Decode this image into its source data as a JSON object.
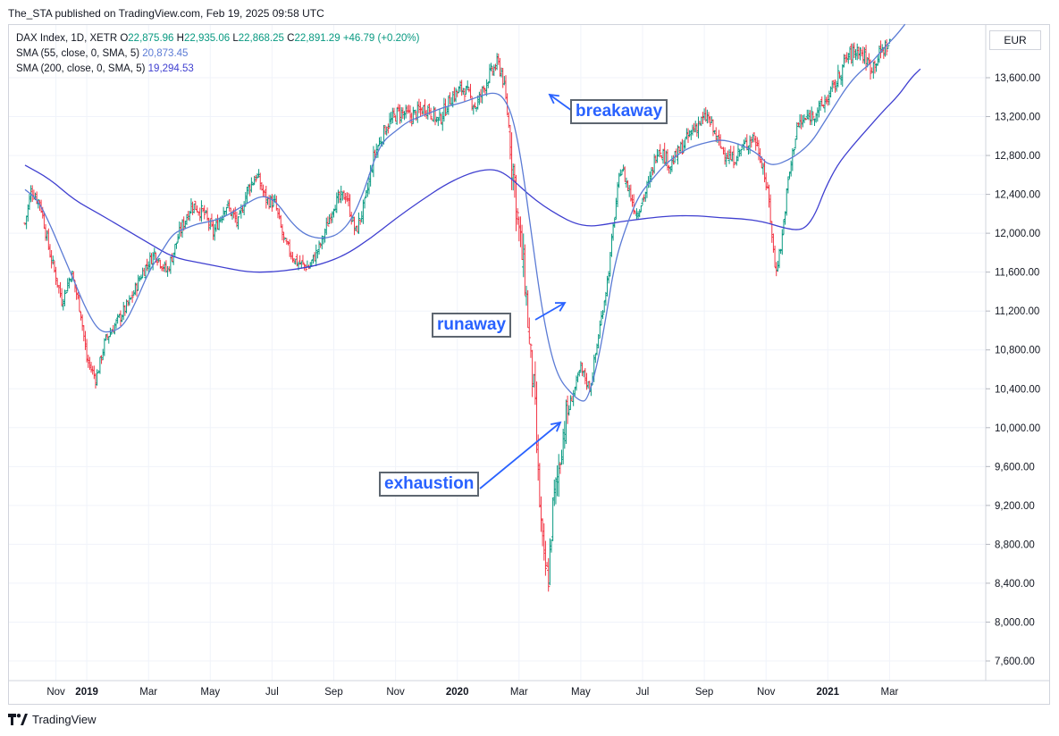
{
  "header": {
    "publisher": "The_STA published on TradingView.com, Feb 19, 2025 09:58 UTC"
  },
  "legend": {
    "symbol": "DAX Index, 1D, XETR",
    "ohlc": [
      {
        "k": "O",
        "v": "22,875.96"
      },
      {
        "k": "H",
        "v": "22,935.06"
      },
      {
        "k": "L",
        "v": "22,868.25"
      },
      {
        "k": "C",
        "v": "22,891.29"
      }
    ],
    "change": "+46.79 (+0.20%)",
    "sma55_label": "SMA (55, close, 0, SMA, 5)",
    "sma55_value": "20,873.45",
    "sma200_label": "SMA (200, close, 0, SMA, 5)",
    "sma200_value": "19,294.53"
  },
  "currency": "EUR",
  "footer": {
    "brand": "TradingView"
  },
  "colors": {
    "up": "#089981",
    "down": "#f23645",
    "sma55": "#5b7bd5",
    "sma200": "#3f3fd0",
    "annotation": "#2962ff",
    "grid": "#f0f3fa"
  },
  "annotations": [
    {
      "id": "breakaway",
      "label": "breakaway"
    },
    {
      "id": "runaway",
      "label": "runaway"
    },
    {
      "id": "exhaustion",
      "label": "exhaustion"
    }
  ],
  "chart_data": {
    "type": "ohlc",
    "x_unit": "months since Oct 2018",
    "y_ticks": [
      7600,
      8000,
      8400,
      8800,
      9200,
      9600,
      10000,
      10400,
      10800,
      11200,
      11600,
      12000,
      12400,
      12800,
      13200,
      13600
    ],
    "y_tick_labels": [
      "7,600.00",
      "8,000.00",
      "8,400.00",
      "8,800.00",
      "9,200.00",
      "9,600.00",
      "10,000.00",
      "10,400.00",
      "10,800.00",
      "11,200.00",
      "11,600.00",
      "12,000.00",
      "12,400.00",
      "12,800.00",
      "13,200.00",
      "13,600.00"
    ],
    "ylim": [
      7300,
      14150
    ],
    "x_ticks": [
      {
        "label": "Nov",
        "month": 1,
        "bold": false
      },
      {
        "label": "2019",
        "month": 2,
        "bold": true
      },
      {
        "label": "Mar",
        "month": 4,
        "bold": false
      },
      {
        "label": "May",
        "month": 6,
        "bold": false
      },
      {
        "label": "Jul",
        "month": 8,
        "bold": false
      },
      {
        "label": "Sep",
        "month": 10,
        "bold": false
      },
      {
        "label": "Nov",
        "month": 12,
        "bold": false
      },
      {
        "label": "2020",
        "month": 14,
        "bold": true
      },
      {
        "label": "Mar",
        "month": 16,
        "bold": false
      },
      {
        "label": "May",
        "month": 18,
        "bold": false
      },
      {
        "label": "Jul",
        "month": 20,
        "bold": false
      },
      {
        "label": "Sep",
        "month": 22,
        "bold": false
      },
      {
        "label": "Nov",
        "month": 24,
        "bold": false
      },
      {
        "label": "2021",
        "month": 26,
        "bold": true
      },
      {
        "label": "Mar",
        "month": 28,
        "bold": false
      }
    ],
    "close_path": [
      [
        0.0,
        12100
      ],
      [
        0.2,
        12450
      ],
      [
        0.5,
        12300
      ],
      [
        0.8,
        11800
      ],
      [
        1.2,
        11300
      ],
      [
        1.5,
        11600
      ],
      [
        1.8,
        11200
      ],
      [
        2.0,
        10700
      ],
      [
        2.3,
        10500
      ],
      [
        2.6,
        10900
      ],
      [
        3.0,
        11100
      ],
      [
        3.4,
        11300
      ],
      [
        3.8,
        11600
      ],
      [
        4.2,
        11800
      ],
      [
        4.6,
        11600
      ],
      [
        5.0,
        12000
      ],
      [
        5.4,
        12300
      ],
      [
        5.8,
        12200
      ],
      [
        6.1,
        12000
      ],
      [
        6.5,
        12300
      ],
      [
        6.9,
        12100
      ],
      [
        7.2,
        12450
      ],
      [
        7.5,
        12600
      ],
      [
        7.8,
        12350
      ],
      [
        8.1,
        12300
      ],
      [
        8.4,
        11900
      ],
      [
        8.8,
        11700
      ],
      [
        9.2,
        11650
      ],
      [
        9.6,
        11900
      ],
      [
        10.0,
        12300
      ],
      [
        10.4,
        12400
      ],
      [
        10.7,
        12000
      ],
      [
        11.0,
        12300
      ],
      [
        11.3,
        12800
      ],
      [
        11.7,
        13100
      ],
      [
        12.1,
        13250
      ],
      [
        12.5,
        13200
      ],
      [
        13.0,
        13300
      ],
      [
        13.4,
        13150
      ],
      [
        13.8,
        13400
      ],
      [
        14.2,
        13500
      ],
      [
        14.6,
        13300
      ],
      [
        15.0,
        13600
      ],
      [
        15.3,
        13750
      ],
      [
        15.45,
        13650
      ],
      [
        15.6,
        13300
      ],
      [
        15.8,
        12700
      ],
      [
        16.0,
        12000
      ],
      [
        16.2,
        11500
      ],
      [
        16.35,
        10800
      ],
      [
        16.5,
        10300
      ],
      [
        16.65,
        9300
      ],
      [
        16.8,
        8600
      ],
      [
        16.95,
        8450
      ],
      [
        17.1,
        9200
      ],
      [
        17.25,
        9500
      ],
      [
        17.45,
        10000
      ],
      [
        17.7,
        10300
      ],
      [
        18.0,
        10600
      ],
      [
        18.3,
        10400
      ],
      [
        18.6,
        11000
      ],
      [
        18.9,
        11600
      ],
      [
        19.1,
        12200
      ],
      [
        19.3,
        12700
      ],
      [
        19.5,
        12500
      ],
      [
        19.8,
        12200
      ],
      [
        20.2,
        12500
      ],
      [
        20.5,
        12900
      ],
      [
        20.9,
        12700
      ],
      [
        21.3,
        12900
      ],
      [
        21.7,
        13100
      ],
      [
        22.1,
        13200
      ],
      [
        22.5,
        12900
      ],
      [
        22.9,
        12750
      ],
      [
        23.3,
        12900
      ],
      [
        23.6,
        13000
      ],
      [
        23.9,
        12700
      ],
      [
        24.1,
        12300
      ],
      [
        24.3,
        11600
      ],
      [
        24.5,
        11900
      ],
      [
        24.7,
        12500
      ],
      [
        25.0,
        13100
      ],
      [
        25.4,
        13200
      ],
      [
        25.8,
        13300
      ],
      [
        26.2,
        13500
      ],
      [
        26.6,
        13800
      ],
      [
        27.0,
        13900
      ],
      [
        27.4,
        13700
      ],
      [
        27.8,
        13900
      ],
      [
        28.0,
        13950
      ]
    ],
    "sma55": [
      [
        0.0,
        12450
      ],
      [
        0.4,
        12350
      ],
      [
        0.8,
        12100
      ],
      [
        1.2,
        11800
      ],
      [
        1.6,
        11500
      ],
      [
        2.0,
        11200
      ],
      [
        2.4,
        10990
      ],
      [
        2.8,
        10980
      ],
      [
        3.2,
        11050
      ],
      [
        3.6,
        11300
      ],
      [
        4.0,
        11600
      ],
      [
        4.4,
        11800
      ],
      [
        4.8,
        12000
      ],
      [
        5.2,
        12050
      ],
      [
        5.6,
        12100
      ],
      [
        6.0,
        12120
      ],
      [
        6.4,
        12160
      ],
      [
        6.8,
        12230
      ],
      [
        7.2,
        12310
      ],
      [
        7.6,
        12380
      ],
      [
        7.9,
        12370
      ],
      [
        8.2,
        12300
      ],
      [
        8.6,
        12120
      ],
      [
        9.0,
        12000
      ],
      [
        9.4,
        11950
      ],
      [
        9.8,
        11950
      ],
      [
        10.2,
        12000
      ],
      [
        10.6,
        12150
      ],
      [
        11.0,
        12450
      ],
      [
        11.3,
        12750
      ],
      [
        11.6,
        12950
      ],
      [
        12.0,
        13050
      ],
      [
        12.4,
        13150
      ],
      [
        12.8,
        13200
      ],
      [
        13.2,
        13250
      ],
      [
        13.6,
        13300
      ],
      [
        14.0,
        13330
      ],
      [
        14.4,
        13370
      ],
      [
        14.8,
        13420
      ],
      [
        15.2,
        13450
      ],
      [
        15.5,
        13400
      ],
      [
        15.8,
        13200
      ],
      [
        16.1,
        12700
      ],
      [
        16.4,
        12000
      ],
      [
        16.7,
        11300
      ],
      [
        17.0,
        10800
      ],
      [
        17.3,
        10500
      ],
      [
        17.7,
        10350
      ],
      [
        18.0,
        10270
      ],
      [
        18.2,
        10280
      ],
      [
        18.5,
        10600
      ],
      [
        18.8,
        11100
      ],
      [
        19.1,
        11700
      ],
      [
        19.5,
        12100
      ],
      [
        19.9,
        12400
      ],
      [
        20.3,
        12550
      ],
      [
        20.7,
        12700
      ],
      [
        21.1,
        12800
      ],
      [
        21.5,
        12880
      ],
      [
        21.9,
        12920
      ],
      [
        22.3,
        12950
      ],
      [
        22.6,
        12960
      ],
      [
        23.0,
        12930
      ],
      [
        23.4,
        12880
      ],
      [
        23.8,
        12800
      ],
      [
        24.0,
        12720
      ],
      [
        24.3,
        12700
      ],
      [
        24.7,
        12750
      ],
      [
        25.1,
        12830
      ],
      [
        25.5,
        12950
      ],
      [
        25.8,
        13100
      ],
      [
        26.2,
        13300
      ],
      [
        26.6,
        13500
      ],
      [
        27.0,
        13650
      ],
      [
        27.4,
        13750
      ],
      [
        27.8,
        13900
      ],
      [
        28.2,
        14030
      ],
      [
        28.5,
        14150
      ]
    ],
    "sma200": [
      [
        0.0,
        12700
      ],
      [
        0.8,
        12560
      ],
      [
        1.6,
        12340
      ],
      [
        2.4,
        12200
      ],
      [
        3.2,
        12050
      ],
      [
        4.0,
        11900
      ],
      [
        4.8,
        11750
      ],
      [
        5.6,
        11700
      ],
      [
        6.4,
        11650
      ],
      [
        7.2,
        11600
      ],
      [
        8.0,
        11600
      ],
      [
        8.8,
        11630
      ],
      [
        9.6,
        11680
      ],
      [
        10.4,
        11780
      ],
      [
        11.2,
        11950
      ],
      [
        12.0,
        12150
      ],
      [
        12.8,
        12330
      ],
      [
        13.6,
        12500
      ],
      [
        14.4,
        12620
      ],
      [
        15.0,
        12660
      ],
      [
        15.4,
        12640
      ],
      [
        15.8,
        12550
      ],
      [
        16.3,
        12400
      ],
      [
        16.8,
        12280
      ],
      [
        17.3,
        12180
      ],
      [
        17.8,
        12100
      ],
      [
        18.3,
        12070
      ],
      [
        18.8,
        12090
      ],
      [
        19.3,
        12120
      ],
      [
        19.8,
        12140
      ],
      [
        20.3,
        12160
      ],
      [
        21.0,
        12180
      ],
      [
        21.8,
        12180
      ],
      [
        22.5,
        12160
      ],
      [
        23.2,
        12150
      ],
      [
        23.9,
        12120
      ],
      [
        24.5,
        12060
      ],
      [
        25.0,
        12030
      ],
      [
        25.3,
        12060
      ],
      [
        25.6,
        12200
      ],
      [
        25.9,
        12450
      ],
      [
        26.3,
        12700
      ],
      [
        26.8,
        12900
      ],
      [
        27.3,
        13080
      ],
      [
        27.8,
        13260
      ],
      [
        28.3,
        13420
      ],
      [
        28.7,
        13600
      ],
      [
        29.0,
        13690
      ]
    ]
  }
}
